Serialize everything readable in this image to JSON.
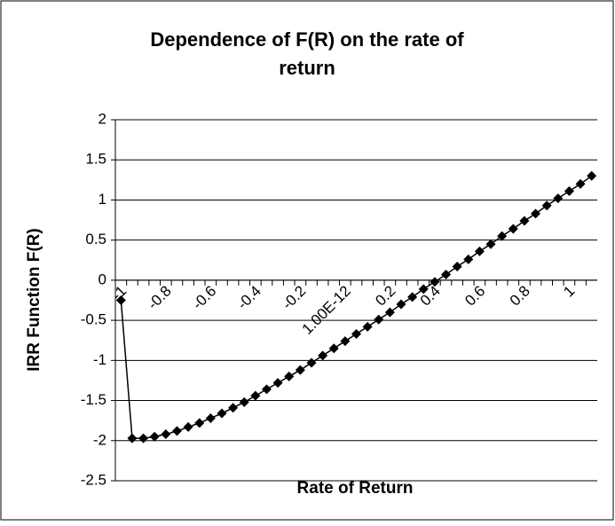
{
  "chart_data": {
    "type": "line",
    "title": "Dependence of F(R) on the rate of return",
    "x_label": "Rate of Return",
    "y_label": "IRR Function F(R)",
    "categories": [
      "-1",
      null,
      null,
      null,
      "-0.8",
      null,
      null,
      null,
      "-0.6",
      null,
      null,
      null,
      "-0.4",
      null,
      null,
      null,
      "-0.2",
      null,
      null,
      null,
      "1.00E-12",
      null,
      null,
      null,
      "0.2",
      null,
      null,
      null,
      "0.4",
      null,
      null,
      null,
      "0.6",
      null,
      null,
      null,
      "0.8",
      null,
      null,
      null,
      "1",
      null,
      null
    ],
    "series": [
      {
        "name": "F(R)",
        "color": "#000000",
        "values": [
          -0.25,
          -1.97,
          -1.97,
          -1.95,
          -1.92,
          -1.88,
          -1.83,
          -1.78,
          -1.72,
          -1.66,
          -1.59,
          -1.52,
          -1.44,
          -1.36,
          -1.28,
          -1.2,
          -1.12,
          -1.03,
          -0.94,
          -0.85,
          -0.76,
          -0.67,
          -0.58,
          -0.49,
          -0.4,
          -0.3,
          -0.21,
          -0.11,
          -0.02,
          0.07,
          0.17,
          0.26,
          0.36,
          0.45,
          0.55,
          0.64,
          0.74,
          0.83,
          0.93,
          1.02,
          1.11,
          1.2,
          1.3
        ]
      }
    ],
    "ylim": [
      -2.5,
      2
    ],
    "yticks": [
      -2.5,
      -2,
      -1.5,
      -1,
      -0.5,
      0,
      0.5,
      1,
      1.5,
      2
    ],
    "grid": true
  }
}
